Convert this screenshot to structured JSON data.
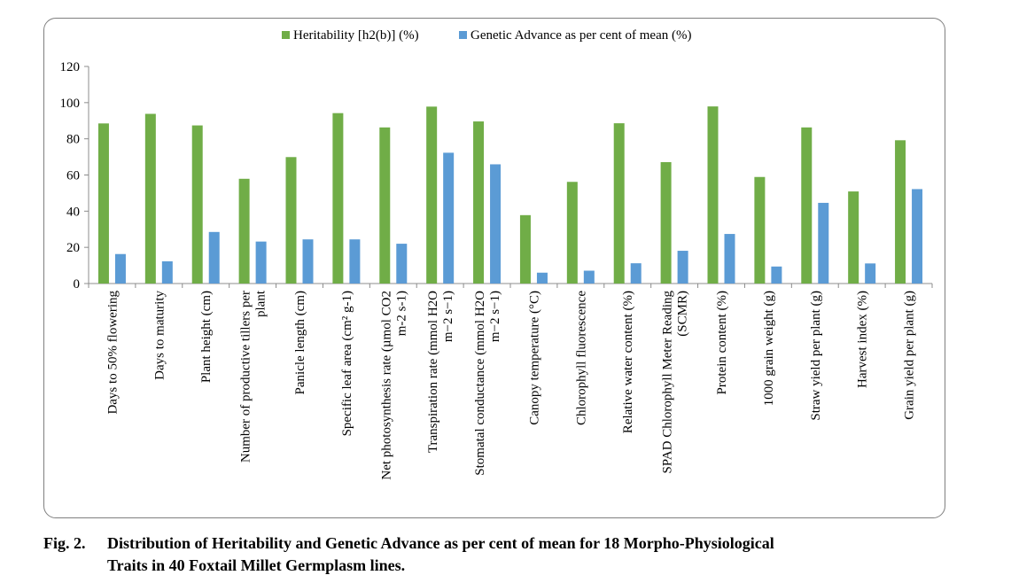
{
  "chart_data": {
    "type": "bar",
    "title": "",
    "xlabel": "",
    "ylabel": "",
    "ylim": [
      0,
      120
    ],
    "yticks": [
      "0",
      "20",
      "40",
      "60",
      "80",
      "100",
      "120"
    ],
    "legend_position": "top-center",
    "grid": false,
    "categories": [
      "Days to 50% flowering",
      "Days to maturity",
      "Plant height (cm)",
      "Number of productive tillers per plant",
      "Panicle length (cm)",
      "Specific leaf area (cm² g-1)",
      "Net photosynthesis rate (µmol CO2 m-2 s-1)",
      "Transpiration rate (mmol H2O m−2 s−1)",
      "Stomatal conductance (mmol H2O m−2 s−1)",
      "Canopy temperature (°C)",
      "Chlorophyll fluorescence",
      "Relative water content (%)",
      "SPAD Chlorophyll Meter Reading (SCMR)",
      "Protein content (%)",
      "1000 grain weight (g)",
      "Straw yield per plant (g)",
      "Harvest index (%)",
      "Grain yield per plant (g)"
    ],
    "category_lines": [
      [
        "Days to 50% flowering"
      ],
      [
        "Days to maturity"
      ],
      [
        "Plant height (cm)"
      ],
      [
        "Number of productive tillers per",
        "plant"
      ],
      [
        "Panicle length (cm)"
      ],
      [
        "Specific leaf area (cm² g-1)"
      ],
      [
        "Net photosynthesis rate (µmol CO2",
        "m-2 s-1)"
      ],
      [
        "Transpiration rate (mmol H2O",
        "m−2 s−1)"
      ],
      [
        "Stomatal conductance (mmol H2O",
        "m−2 s−1)"
      ],
      [
        "Canopy temperature (°C)"
      ],
      [
        "Chlorophyll fluorescence"
      ],
      [
        "Relative water content (%)"
      ],
      [
        "SPAD Chlorophyll Meter Reading",
        "(SCMR)"
      ],
      [
        "Protein content (%)"
      ],
      [
        "1000 grain weight (g)"
      ],
      [
        "Straw yield per plant (g)"
      ],
      [
        "Harvest index (%)"
      ],
      [
        "Grain yield per plant (g)"
      ]
    ],
    "series": [
      {
        "name": "Heritability [h2(b)] (%)",
        "color": "#70ad47",
        "values": [
          88.5,
          93.8,
          87.4,
          57.9,
          69.9,
          94.2,
          86.3,
          97.8,
          89.6,
          37.8,
          56.2,
          88.6,
          67.1,
          97.9,
          58.9,
          86.3,
          50.9,
          79.2
        ]
      },
      {
        "name": "Genetic Advance as per cent of mean (%)",
        "color": "#5b9bd5",
        "values": [
          16.3,
          12.3,
          28.5,
          23.2,
          24.4,
          24.4,
          22.0,
          72.3,
          65.9,
          6.0,
          7.1,
          11.2,
          18.1,
          27.4,
          9.4,
          44.6,
          11.1,
          52.2
        ]
      }
    ]
  },
  "caption": {
    "label": "Fig. 2.",
    "line1": "Distribution of Heritability and Genetic Advance as per cent of mean for 18 Morpho-Physiological",
    "line2": "Traits in 40 Foxtail Millet Germplasm lines."
  }
}
